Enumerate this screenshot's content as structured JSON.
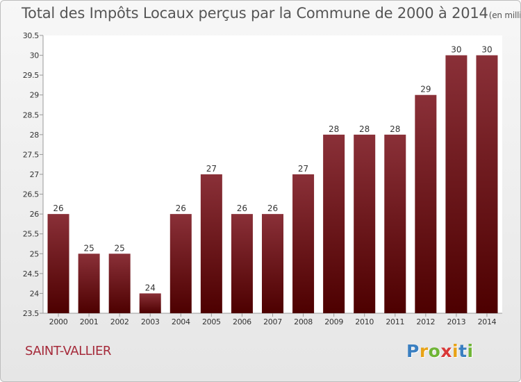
{
  "chart_data": {
    "type": "bar",
    "title": "Total des Impôts Locaux perçus par la Commune de 2000 à 2014",
    "unit_note": "(en milliers d'€)",
    "categories": [
      "2000",
      "2001",
      "2002",
      "2003",
      "2004",
      "2005",
      "2006",
      "2007",
      "2008",
      "2009",
      "2010",
      "2011",
      "2012",
      "2013",
      "2014"
    ],
    "values": [
      26,
      25,
      25,
      24,
      26,
      27,
      26,
      26,
      27,
      28,
      28,
      28,
      29,
      30,
      30
    ],
    "ylim": [
      23.5,
      30.5
    ],
    "yticks": [
      "23.5",
      "24",
      "24.5",
      "25",
      "25.5",
      "26",
      "26.5",
      "27",
      "27.5",
      "28",
      "28.5",
      "29",
      "29.5",
      "30",
      "30.5"
    ],
    "xlabel": "",
    "ylabel": "",
    "grid": false,
    "bar_color_top": "#8a3038",
    "bar_color_bottom": "#4d0000"
  },
  "footer": {
    "commune": "SAINT-VALLIER",
    "logo": "Proxiti"
  }
}
